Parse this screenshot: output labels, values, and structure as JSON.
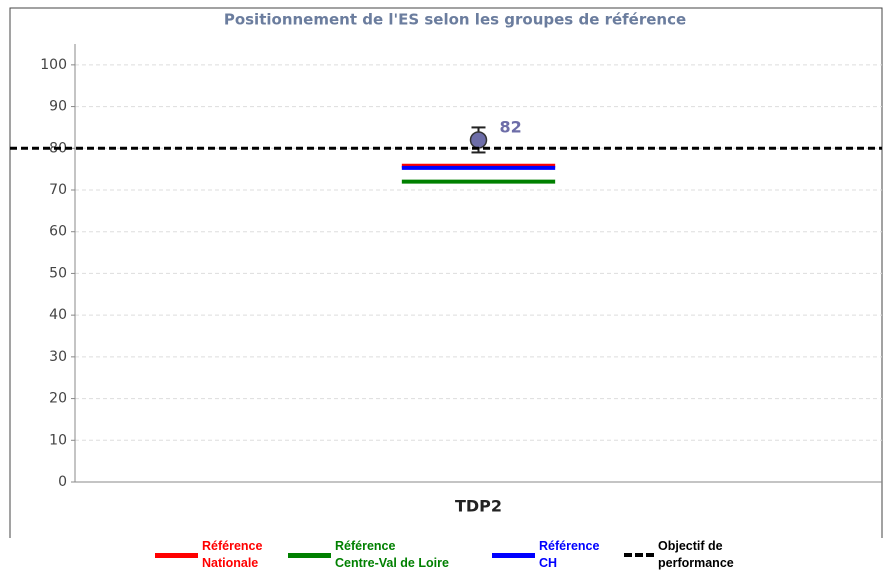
{
  "chart_data": {
    "type": "dot_reference",
    "title": "Positionnement de l'ES selon les groupes de référence",
    "categories": [
      "TDP2"
    ],
    "point": {
      "values": [
        82
      ],
      "errors": [
        3
      ],
      "color": "#6d6da8"
    },
    "references": [
      {
        "name": "Référence\nNationale",
        "color": "#ff0000",
        "values": [
          75.8
        ]
      },
      {
        "name": "Référence\nCentre-Val de Loire",
        "color": "#008000",
        "values": [
          72
        ]
      },
      {
        "name": "Référence\nCH",
        "color": "#0000ff",
        "values": [
          75.3
        ]
      }
    ],
    "objective": {
      "name": "Objectif de\nperformance",
      "color": "#000000",
      "value": 80
    },
    "ylim": [
      0,
      105
    ],
    "yticks": [
      0,
      10,
      20,
      30,
      40,
      50,
      60,
      70,
      80,
      90,
      100
    ],
    "grid": true
  }
}
